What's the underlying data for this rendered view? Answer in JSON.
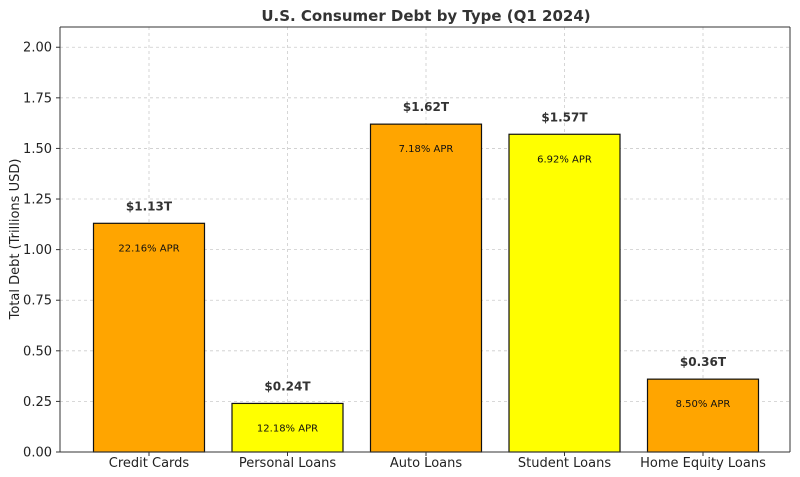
{
  "chart_data": {
    "type": "bar",
    "title": "U.S. Consumer Debt by Type (Q1 2024)",
    "xlabel": "",
    "ylabel": "Total Debt (Trillions USD)",
    "ylim": [
      0,
      2.1
    ],
    "yticks": [
      "0.00",
      "0.25",
      "0.50",
      "0.75",
      "1.00",
      "1.25",
      "1.50",
      "1.75",
      "2.00"
    ],
    "grid": true,
    "categories": [
      "Credit Cards",
      "Personal Loans",
      "Auto Loans",
      "Student Loans",
      "Home Equity Loans"
    ],
    "values": [
      1.13,
      0.24,
      1.62,
      1.57,
      0.36
    ],
    "value_labels": [
      "$1.13T",
      "$0.24T",
      "$1.62T",
      "$1.57T",
      "$0.36T"
    ],
    "apr_labels": [
      "22.16% APR",
      "12.18% APR",
      "7.18% APR",
      "6.92% APR",
      "8.50% APR"
    ],
    "colors": [
      "#FFA500",
      "#FFFF00",
      "#FFA500",
      "#FFFF00",
      "#FFA500"
    ]
  }
}
